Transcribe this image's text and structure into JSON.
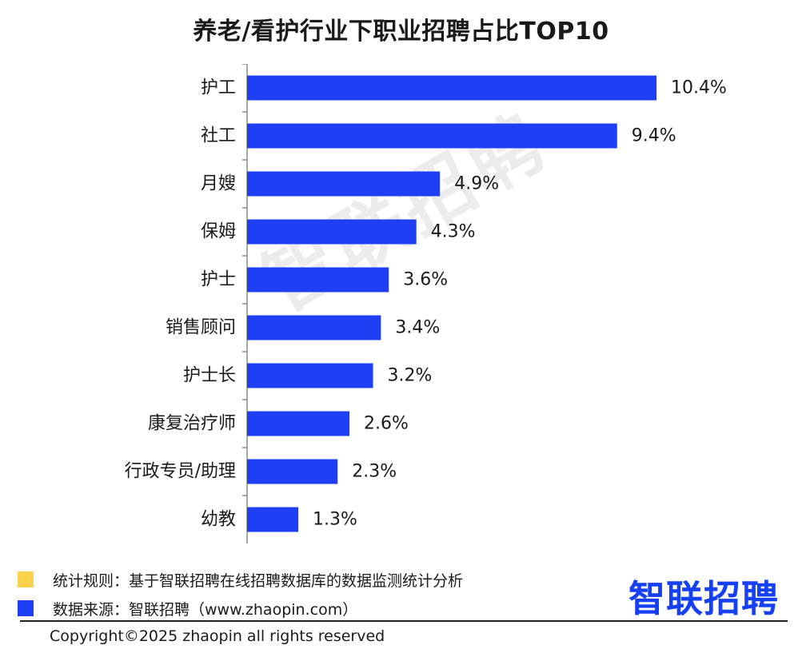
{
  "title": "养老/看护行业下职业招聘占比TOP10",
  "watermark": "智联招聘",
  "chart_data": {
    "type": "bar",
    "orientation": "horizontal",
    "categories": [
      "护工",
      "社工",
      "月嫂",
      "保姆",
      "护士",
      "销售顾问",
      "护士长",
      "康复治疗师",
      "行政专员/助理",
      "幼教"
    ],
    "values": [
      10.4,
      9.4,
      4.9,
      4.3,
      3.6,
      3.4,
      3.2,
      2.6,
      2.3,
      1.3
    ],
    "value_labels": [
      "10.4%",
      "9.4%",
      "4.9%",
      "4.3%",
      "3.6%",
      "3.4%",
      "3.2%",
      "2.6%",
      "2.3%",
      "1.3%"
    ],
    "xlim": [
      0,
      10.4
    ],
    "bar_color": "#1e3ff5",
    "grid": false
  },
  "notes": [
    {
      "text": "统计规则：基于智联招聘在线招聘数据库的数据监测统计分析",
      "color": "#ffd24d"
    },
    {
      "text": "数据来源：智联招聘（www.zhaopin.com）",
      "color": "#1e3ff5"
    }
  ],
  "logo": "智联招聘",
  "copyright": "Copyright©2025 zhaopin all rights reserved"
}
